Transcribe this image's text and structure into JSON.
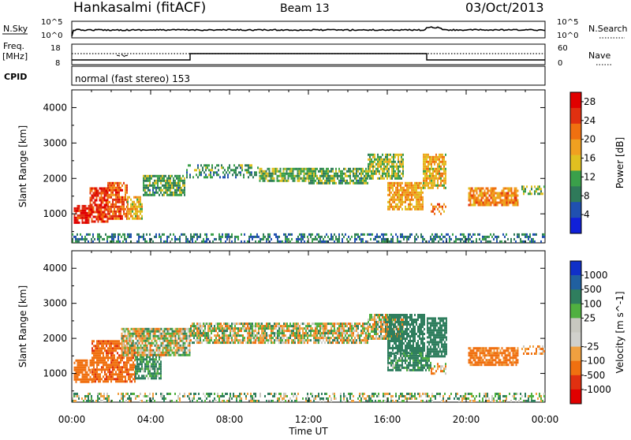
{
  "header": {
    "station": "Hankasalmi (fitACF)",
    "beam": "Beam 13",
    "date": "03/Oct/2013"
  },
  "strip_panels": {
    "nsky_label": "N.Sky",
    "nsky_ticks": [
      "10^5",
      "10^0"
    ],
    "nsearch_label": "N.Search",
    "nsearch_ticks": [
      "10^5",
      "10^0"
    ],
    "freq_label": "Freq.",
    "freq_unit": "[MHz]",
    "freq_ticks": [
      "18",
      "8"
    ],
    "nave_label": "Nave",
    "nave_ticks": [
      "60",
      "0"
    ],
    "cpid_label": "CPID",
    "cpid_value": "normal (fast stereo) 153"
  },
  "colors": {
    "power_scale": [
      "#1020d8",
      "#2050b0",
      "#2f7a5a",
      "#3aa04a",
      "#e0c020",
      "#f0a020",
      "#f07010",
      "#e03010",
      "#e00000"
    ],
    "velocity_scale": [
      "#1030c8",
      "#2060a0",
      "#2f7e5e",
      "#50b040",
      "#c8c8c0",
      "#d0d0cc",
      "#f0a040",
      "#f07010",
      "#e03010",
      "#e00000"
    ]
  },
  "chart_data": [
    {
      "type": "heatmap",
      "name": "power",
      "xlabel": "",
      "ylabel": "Slant Range [km]",
      "x_ticks": [
        "00:00",
        "04:00",
        "08:00",
        "12:00",
        "16:00",
        "20:00",
        "00:00"
      ],
      "xlim_hours": [
        0,
        24
      ],
      "y_ticks": [
        1000,
        2000,
        3000,
        4000
      ],
      "ylim": [
        180,
        4500
      ],
      "colorbar_label": "Power [dB]",
      "colorbar_ticks": [
        4,
        8,
        12,
        16,
        20,
        24,
        28
      ],
      "colorbar_range": [
        0,
        30
      ],
      "echo_bands": [
        {
          "t0": 0.1,
          "t1": 0.9,
          "r0": 750,
          "r1": 1250,
          "value": 27
        },
        {
          "t0": 0.9,
          "t1": 1.8,
          "r0": 800,
          "r1": 1750,
          "value": 25
        },
        {
          "t0": 1.8,
          "t1": 2.8,
          "r0": 850,
          "r1": 1900,
          "value": 23
        },
        {
          "t0": 2.8,
          "t1": 3.6,
          "r0": 850,
          "r1": 1500,
          "value": 17
        },
        {
          "t0": 3.6,
          "t1": 5.7,
          "r0": 1500,
          "r1": 2100,
          "value": 11
        },
        {
          "t0": 5.8,
          "t1": 9.5,
          "r0": 2050,
          "r1": 2400,
          "value": 10
        },
        {
          "t0": 9.5,
          "t1": 12.0,
          "r0": 1900,
          "r1": 2300,
          "value": 12
        },
        {
          "t0": 12.0,
          "t1": 15.0,
          "r0": 1850,
          "r1": 2300,
          "value": 11
        },
        {
          "t0": 15.0,
          "t1": 16.8,
          "r0": 2000,
          "r1": 2700,
          "value": 13
        },
        {
          "t0": 16.0,
          "t1": 17.8,
          "r0": 1100,
          "r1": 1900,
          "value": 18
        },
        {
          "t0": 17.8,
          "t1": 19.0,
          "r0": 1700,
          "r1": 2700,
          "value": 17
        },
        {
          "t0": 18.2,
          "t1": 19.0,
          "r0": 1000,
          "r1": 1300,
          "value": 21
        },
        {
          "t0": 20.1,
          "t1": 22.6,
          "r0": 1250,
          "r1": 1750,
          "value": 20
        },
        {
          "t0": 22.8,
          "t1": 24.0,
          "r0": 1550,
          "r1": 1800,
          "value": 12
        },
        {
          "t0": 0.0,
          "t1": 24.0,
          "r0": 200,
          "r1": 450,
          "value": 8
        }
      ]
    },
    {
      "type": "heatmap",
      "name": "velocity",
      "xlabel": "Time UT",
      "ylabel": "Slant Range [km]",
      "x_ticks": [
        "00:00",
        "04:00",
        "08:00",
        "12:00",
        "16:00",
        "20:00",
        "00:00"
      ],
      "xlim_hours": [
        0,
        24
      ],
      "y_ticks": [
        1000,
        2000,
        3000,
        4000
      ],
      "ylim": [
        180,
        4500
      ],
      "colorbar_label": "Velocity [m s^-1]",
      "colorbar_ticks": [
        1000,
        500,
        100,
        25,
        -25,
        -100,
        -500,
        -1000
      ],
      "colorbar_range": [
        -1000,
        1000
      ],
      "echo_bands": [
        {
          "t0": 0.1,
          "t1": 1.0,
          "r0": 750,
          "r1": 1400,
          "value": -300
        },
        {
          "t0": 1.0,
          "t1": 3.2,
          "r0": 800,
          "r1": 1950,
          "value": -400
        },
        {
          "t0": 3.2,
          "t1": 4.5,
          "r0": 850,
          "r1": 1500,
          "value": 150
        },
        {
          "t0": 2.5,
          "t1": 6.0,
          "r0": 1500,
          "r1": 2300,
          "value": 0
        },
        {
          "t0": 6.0,
          "t1": 15.0,
          "r0": 1900,
          "r1": 2450,
          "value": 0
        },
        {
          "t0": 15.0,
          "t1": 16.8,
          "r0": 2000,
          "r1": 2700,
          "value": 0
        },
        {
          "t0": 16.0,
          "t1": 17.9,
          "r0": 1600,
          "r1": 2700,
          "value": 300
        },
        {
          "t0": 16.0,
          "t1": 18.2,
          "r0": 1100,
          "r1": 1600,
          "value": 150
        },
        {
          "t0": 18.0,
          "t1": 19.0,
          "r0": 1500,
          "r1": 2600,
          "value": 300
        },
        {
          "t0": 18.2,
          "t1": 19.0,
          "r0": 1000,
          "r1": 1300,
          "value": -60
        },
        {
          "t0": 20.1,
          "t1": 22.6,
          "r0": 1250,
          "r1": 1750,
          "value": -200
        },
        {
          "t0": 22.8,
          "t1": 24.0,
          "r0": 1550,
          "r1": 1800,
          "value": -120
        },
        {
          "t0": 0.0,
          "t1": 24.0,
          "r0": 200,
          "r1": 450,
          "value": 60
        }
      ]
    }
  ]
}
